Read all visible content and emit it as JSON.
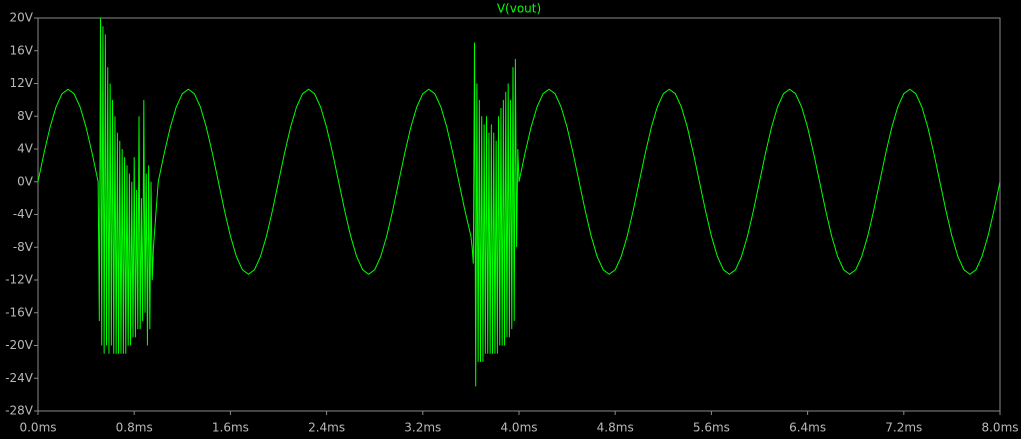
{
  "chart_data": {
    "type": "line",
    "x": [
      0,
      0.05,
      0.1,
      0.15,
      0.2,
      0.25,
      0.3,
      0.35,
      0.4,
      0.45,
      0.5,
      0.51,
      0.52,
      0.53,
      0.54,
      0.55,
      0.56,
      0.57,
      0.58,
      0.59,
      0.6,
      0.61,
      0.62,
      0.63,
      0.64,
      0.65,
      0.66,
      0.67,
      0.68,
      0.69,
      0.7,
      0.71,
      0.72,
      0.73,
      0.74,
      0.75,
      0.76,
      0.77,
      0.78,
      0.79,
      0.8,
      0.81,
      0.82,
      0.83,
      0.84,
      0.85,
      0.86,
      0.87,
      0.88,
      0.89,
      0.9,
      0.91,
      0.92,
      0.93,
      0.94,
      0.95,
      0.96,
      0.97,
      0.98,
      0.99,
      1,
      1.05,
      1.1,
      1.15,
      1.2,
      1.25,
      1.3,
      1.35,
      1.4,
      1.45,
      1.5,
      1.55,
      1.6,
      1.65,
      1.7,
      1.75,
      1.8,
      1.85,
      1.9,
      1.95,
      2,
      2.05,
      2.1,
      2.15,
      2.2,
      2.25,
      2.3,
      2.35,
      2.4,
      2.45,
      2.5,
      2.55,
      2.6,
      2.65,
      2.7,
      2.75,
      2.8,
      2.85,
      2.9,
      2.95,
      3,
      3.05,
      3.1,
      3.15,
      3.2,
      3.25,
      3.3,
      3.35,
      3.4,
      3.45,
      3.5,
      3.55,
      3.6,
      3.61,
      3.62,
      3.63,
      3.64,
      3.65,
      3.66,
      3.67,
      3.68,
      3.69,
      3.7,
      3.71,
      3.72,
      3.73,
      3.74,
      3.75,
      3.76,
      3.77,
      3.78,
      3.79,
      3.8,
      3.81,
      3.82,
      3.83,
      3.84,
      3.85,
      3.86,
      3.87,
      3.88,
      3.89,
      3.9,
      3.91,
      3.92,
      3.93,
      3.94,
      3.95,
      3.96,
      3.97,
      3.98,
      3.99,
      4,
      4.05,
      4.1,
      4.15,
      4.2,
      4.25,
      4.3,
      4.35,
      4.4,
      4.45,
      4.5,
      4.55,
      4.6,
      4.65,
      4.7,
      4.75,
      4.8,
      4.85,
      4.9,
      4.95,
      5,
      5.05,
      5.1,
      5.15,
      5.2,
      5.25,
      5.3,
      5.35,
      5.4,
      5.45,
      5.5,
      5.55,
      5.6,
      5.65,
      5.7,
      5.75,
      5.8,
      5.85,
      5.9,
      5.95,
      6,
      6.05,
      6.1,
      6.15,
      6.2,
      6.25,
      6.3,
      6.35,
      6.4,
      6.45,
      6.5,
      6.55,
      6.6,
      6.65,
      6.7,
      6.75,
      6.8,
      6.85,
      6.9,
      6.95,
      7,
      7.05,
      7.1,
      7.15,
      7.2,
      7.25,
      7.3,
      7.35,
      7.4,
      7.45,
      7.5,
      7.55,
      7.6,
      7.65,
      7.7,
      7.75,
      7.8,
      7.85,
      7.9,
      7.95,
      8
    ],
    "series": [
      {
        "name": "V(vout)",
        "color": "#00ff00",
        "values": [
          0,
          3.49,
          6.64,
          9.14,
          10.75,
          11.3,
          10.75,
          9.14,
          6.64,
          3.49,
          0,
          -17,
          20,
          -20,
          19,
          -21,
          18,
          -20,
          14,
          -21,
          12,
          -20,
          10,
          -21,
          8,
          -21,
          6,
          -21,
          5,
          -21,
          4,
          -21,
          3,
          -21,
          2,
          -20,
          1,
          -20,
          0,
          -19,
          3,
          -19,
          -1,
          -18,
          8,
          -18,
          -2,
          -17,
          10,
          -16,
          1,
          -20,
          2,
          -18,
          0,
          -12,
          -8,
          -6,
          -4,
          -2,
          0,
          3.49,
          6.64,
          9.14,
          10.75,
          11.3,
          10.75,
          9.14,
          6.64,
          3.49,
          0,
          -3.49,
          -6.64,
          -9.14,
          -10.75,
          -11.3,
          -10.75,
          -9.14,
          -6.64,
          -3.49,
          0,
          3.49,
          6.64,
          9.14,
          10.75,
          11.3,
          10.75,
          9.14,
          6.64,
          3.49,
          0,
          -3.49,
          -6.64,
          -9.14,
          -10.75,
          -11.3,
          -10.75,
          -9.14,
          -6.64,
          -3.49,
          0,
          3.49,
          6.64,
          9.14,
          10.75,
          11.3,
          10.75,
          9.14,
          6.64,
          3.49,
          0,
          -3.49,
          -6.64,
          -8,
          -10,
          17,
          -25,
          12,
          -22,
          10,
          -22,
          8,
          -22,
          7,
          -21,
          8,
          -21,
          6,
          -21,
          7,
          -21,
          6,
          -21,
          5,
          -21,
          8,
          -20,
          9,
          -20,
          10,
          -20,
          11,
          -19,
          12,
          -19,
          10,
          -18,
          14,
          -17,
          15,
          -8,
          4,
          0,
          3.49,
          6.64,
          9.14,
          10.75,
          11.3,
          10.75,
          9.14,
          6.64,
          3.49,
          0,
          -3.49,
          -6.64,
          -9.14,
          -10.75,
          -11.3,
          -10.75,
          -9.14,
          -6.64,
          -3.49,
          0,
          3.49,
          6.64,
          9.14,
          10.75,
          11.3,
          10.75,
          9.14,
          6.64,
          3.49,
          0,
          -3.49,
          -6.64,
          -9.14,
          -10.75,
          -11.3,
          -10.75,
          -9.14,
          -6.64,
          -3.49,
          0,
          3.49,
          6.64,
          9.14,
          10.75,
          11.3,
          10.75,
          9.14,
          6.64,
          3.49,
          0,
          -3.49,
          -6.64,
          -9.14,
          -10.75,
          -11.3,
          -10.75,
          -9.14,
          -6.64,
          -3.49,
          0,
          3.49,
          6.64,
          9.14,
          10.75,
          11.3,
          10.75,
          9.14,
          6.64,
          3.49,
          0,
          -3.49,
          -6.64,
          -9.14,
          -10.75,
          -11.3,
          -10.75,
          -9.14,
          -6.64,
          -3.49,
          0
        ]
      }
    ],
    "xlim": [
      0,
      8
    ],
    "xticks": [
      {
        "value": 0,
        "label": "0.0ms"
      },
      {
        "value": 0.8,
        "label": "0.8ms"
      },
      {
        "value": 1.6,
        "label": "1.6ms"
      },
      {
        "value": 2.4,
        "label": "2.4ms"
      },
      {
        "value": 3.2,
        "label": "3.2ms"
      },
      {
        "value": 4,
        "label": "4.0ms"
      },
      {
        "value": 4.8,
        "label": "4.8ms"
      },
      {
        "value": 5.6,
        "label": "5.6ms"
      },
      {
        "value": 6.4,
        "label": "6.4ms"
      },
      {
        "value": 7.2,
        "label": "7.2ms"
      },
      {
        "value": 8,
        "label": "8.0ms"
      }
    ],
    "ylim": [
      -28,
      20
    ],
    "yticks": [
      {
        "value": 20,
        "label": "20V"
      },
      {
        "value": 16,
        "label": "16V"
      },
      {
        "value": 12,
        "label": "12V"
      },
      {
        "value": 8,
        "label": "8V"
      },
      {
        "value": 4,
        "label": "4V"
      },
      {
        "value": 0,
        "label": "0V"
      },
      {
        "value": -4,
        "label": "-4V"
      },
      {
        "value": -8,
        "label": "-8V"
      },
      {
        "value": -12,
        "label": "-12V"
      },
      {
        "value": -16,
        "label": "-16V"
      },
      {
        "value": -20,
        "label": "-20V"
      },
      {
        "value": -24,
        "label": "-24V"
      },
      {
        "value": -28,
        "label": "-28V"
      }
    ],
    "grid": false
  }
}
